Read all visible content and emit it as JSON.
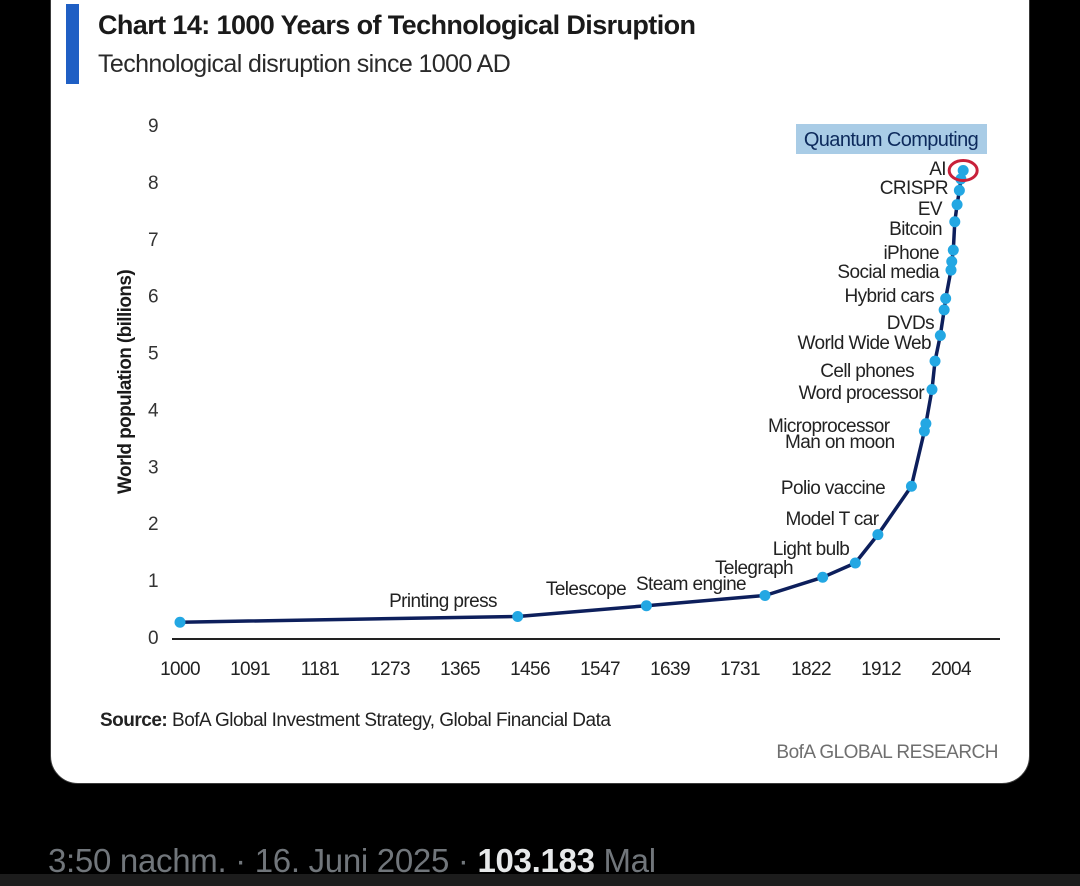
{
  "colors": {
    "accent": "#1f5fc4",
    "line": "#0d1f5c",
    "marker": "#23a7e3",
    "highlight_bg": "#a9cce6",
    "ai_ring": "#c8203a",
    "axis": "#222222"
  },
  "chart_data": {
    "type": "line",
    "title": "Chart 14: 1000 Years of Technological Disruption",
    "subtitle": "Technological disruption since 1000 AD",
    "ylabel": "World population (billions)",
    "xlabel": "",
    "xlim": [
      1000,
      2025
    ],
    "ylim": [
      0,
      9
    ],
    "x_ticks": [
      {
        "label": "1000",
        "value": 1000
      },
      {
        "label": "1091",
        "value": 1091
      },
      {
        "label": "1181",
        "value": 1181
      },
      {
        "label": "1273",
        "value": 1273
      },
      {
        "label": "1365",
        "value": 1365
      },
      {
        "label": "1456",
        "value": 1456
      },
      {
        "label": "1547",
        "value": 1547
      },
      {
        "label": "1639",
        "value": 1639
      },
      {
        "label": "1731",
        "value": 1731
      },
      {
        "label": "1822",
        "value": 1822
      },
      {
        "label": "1912",
        "value": 1912
      },
      {
        "label": "2004",
        "value": 2004
      }
    ],
    "y_ticks": [
      "0",
      "1",
      "2",
      "3",
      "4",
      "5",
      "6",
      "7",
      "8",
      "9"
    ],
    "series": [
      {
        "name": "World population",
        "points": [
          {
            "x": 1000,
            "y": 0.26
          },
          {
            "x": 1440,
            "y": 0.36
          },
          {
            "x": 1608,
            "y": 0.55
          },
          {
            "x": 1763,
            "y": 0.73
          },
          {
            "x": 1837,
            "y": 1.05
          },
          {
            "x": 1879,
            "y": 1.3
          },
          {
            "x": 1908,
            "y": 1.8
          },
          {
            "x": 1952,
            "y": 2.65
          },
          {
            "x": 1969,
            "y": 3.62
          },
          {
            "x": 1971,
            "y": 3.75
          },
          {
            "x": 1979,
            "y": 4.35
          },
          {
            "x": 1983,
            "y": 4.85
          },
          {
            "x": 1990,
            "y": 5.3
          },
          {
            "x": 1995,
            "y": 5.75
          },
          {
            "x": 1997,
            "y": 5.95
          },
          {
            "x": 2004,
            "y": 6.45
          },
          {
            "x": 2005,
            "y": 6.6
          },
          {
            "x": 2007,
            "y": 6.8
          },
          {
            "x": 2009,
            "y": 7.3
          },
          {
            "x": 2012,
            "y": 7.6
          },
          {
            "x": 2015,
            "y": 7.85
          },
          {
            "x": 2017,
            "y": 8.05
          },
          {
            "x": 2020,
            "y": 8.2
          }
        ]
      }
    ],
    "annotations": [
      {
        "label": "Printing press",
        "x": 1440,
        "y": 0.36
      },
      {
        "label": "Telescope",
        "x": 1608,
        "y": 0.55
      },
      {
        "label": "Steam engine",
        "x": 1763,
        "y": 0.73
      },
      {
        "label": "Telegraph",
        "x": 1837,
        "y": 1.05
      },
      {
        "label": "Light bulb",
        "x": 1879,
        "y": 1.3
      },
      {
        "label": "Model T car",
        "x": 1908,
        "y": 1.8
      },
      {
        "label": "Polio vaccine",
        "x": 1952,
        "y": 2.65
      },
      {
        "label": "Man on moon",
        "x": 1969,
        "y": 3.62
      },
      {
        "label": "Microprocessor",
        "x": 1971,
        "y": 3.75
      },
      {
        "label": "Word processor",
        "x": 1979,
        "y": 4.35
      },
      {
        "label": "Cell phones",
        "x": 1983,
        "y": 4.85
      },
      {
        "label": "World Wide Web",
        "x": 1990,
        "y": 5.3
      },
      {
        "label": "DVDs",
        "x": 1995,
        "y": 5.75
      },
      {
        "label": "Hybrid cars",
        "x": 1997,
        "y": 5.95
      },
      {
        "label": "Social media",
        "x": 2004,
        "y": 6.45
      },
      {
        "label": "iPhone",
        "x": 2007,
        "y": 6.8
      },
      {
        "label": "Bitcoin",
        "x": 2009,
        "y": 7.3
      },
      {
        "label": "EV",
        "x": 2012,
        "y": 7.6
      },
      {
        "label": "CRISPR",
        "x": 2015,
        "y": 7.85
      },
      {
        "label": "AI",
        "x": 2020,
        "y": 8.2
      },
      {
        "label": "Quantum Computing",
        "x": 2020,
        "y": 8.6
      }
    ]
  },
  "source": {
    "prefix": "Source:",
    "text": " BofA Global Investment Strategy, Global Financial Data"
  },
  "brand": "BofA GLOBAL RESEARCH",
  "tweet": {
    "time": "3:50 nachm. · 16. Juni 2025 · ",
    "views": "103.183",
    "views_suffix": " Mal"
  }
}
